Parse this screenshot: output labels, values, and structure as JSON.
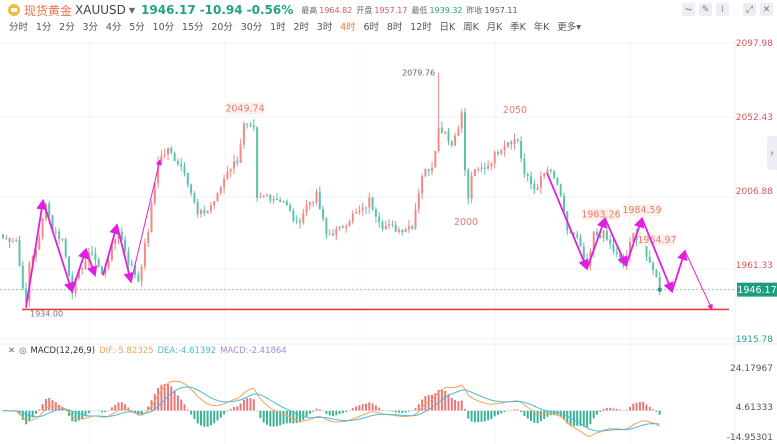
{
  "header": {
    "name": "现货黄金",
    "symbol": "XAUUSD",
    "price": "1946.17",
    "change": "-10.94",
    "change_pct": "-0.56%",
    "high_label": "最高",
    "high": "1964.82",
    "open_label": "开盘",
    "open": "1957.17",
    "low_label": "最低",
    "low": "1939.32",
    "prev_label": "昨收",
    "prev": "1957.11"
  },
  "periods": [
    "分时",
    "1分",
    "2分",
    "3分",
    "4分",
    "5分",
    "10分",
    "15分",
    "20分",
    "30分",
    "1时",
    "2时",
    "3时",
    "4时",
    "6时",
    "8时",
    "12时",
    "日K",
    "周K",
    "月K",
    "季K",
    "年K",
    "更多▾"
  ],
  "active_period": "4时",
  "toolbar": [
    "draw-icon",
    "pen-icon",
    "indicator-icon",
    "expand-icon",
    "close-icon"
  ],
  "colors": {
    "up": "#ef8a87",
    "down": "#5cc3aa",
    "accent": "#f0793c",
    "current": "#1e9e7e",
    "support": "#f03a3a",
    "arrow": "#e020e0"
  },
  "chart_data": {
    "type": "candlestick",
    "yaxis_ticks": [
      "2097.98",
      "2052.43",
      "2006.88",
      "1961.33",
      "1915.78"
    ],
    "ylim": [
      1915.78,
      2097.98
    ],
    "current_price": "1946.17",
    "support_line": {
      "value": 1934.0,
      "label": "1934.00"
    },
    "annotations": [
      {
        "text": "2079.76",
        "value": 2079.76
      },
      {
        "text": "2049.74",
        "value": 2049.74
      },
      {
        "text": "2050",
        "value": 2050
      },
      {
        "text": "2000",
        "value": 2000
      },
      {
        "text": "1983.26",
        "value": 1983.26
      },
      {
        "text": "1984.59",
        "value": 1984.59
      },
      {
        "text": "1964.97",
        "value": 1964.97
      }
    ],
    "close_path": [
      [
        0,
        1978
      ],
      [
        4,
        1977
      ],
      [
        5,
        1961
      ],
      [
        7,
        1937
      ],
      [
        8,
        1962
      ],
      [
        11,
        1977
      ],
      [
        13,
        2001
      ],
      [
        15,
        1983
      ],
      [
        18,
        1977
      ],
      [
        21,
        1946
      ],
      [
        24,
        1961
      ],
      [
        27,
        1970
      ],
      [
        30,
        1955
      ],
      [
        35,
        1983
      ],
      [
        38,
        1964
      ],
      [
        41,
        1952
      ],
      [
        44,
        1983
      ],
      [
        47,
        2026
      ],
      [
        50,
        2032
      ],
      [
        55,
        2020
      ],
      [
        59,
        1992
      ],
      [
        62,
        1995
      ],
      [
        65,
        2004
      ],
      [
        68,
        2020
      ],
      [
        71,
        2026
      ],
      [
        73,
        2047
      ],
      [
        76,
        2044
      ],
      [
        77,
        2001
      ],
      [
        80,
        2004
      ],
      [
        85,
        2001
      ],
      [
        89,
        1986
      ],
      [
        92,
        1998
      ],
      [
        95,
        2004
      ],
      [
        98,
        1980
      ],
      [
        102,
        1983
      ],
      [
        106,
        1992
      ],
      [
        109,
        1995
      ],
      [
        111,
        2001
      ],
      [
        115,
        1986
      ],
      [
        120,
        1983
      ],
      [
        124,
        1986
      ],
      [
        127,
        2017
      ],
      [
        130,
        2023
      ],
      [
        132,
        2045
      ],
      [
        134,
        2044
      ],
      [
        136,
        2035
      ],
      [
        139,
        2054
      ],
      [
        140,
        2020
      ],
      [
        141,
        2001
      ],
      [
        142,
        2017
      ],
      [
        147,
        2023
      ],
      [
        150,
        2032
      ],
      [
        153,
        2038
      ],
      [
        156,
        2038
      ],
      [
        158,
        2017
      ],
      [
        161,
        2008
      ],
      [
        165,
        2020
      ],
      [
        168,
        2011
      ],
      [
        171,
        1983
      ],
      [
        174,
        1977
      ],
      [
        177,
        1958
      ],
      [
        179,
        1980
      ],
      [
        182,
        1980
      ],
      [
        185,
        1970
      ],
      [
        188,
        1961
      ],
      [
        191,
        1980
      ],
      [
        194,
        1977
      ],
      [
        195,
        1964
      ],
      [
        197,
        1960
      ],
      [
        199,
        1946.17
      ]
    ],
    "peak_high": [
      132,
      2079.76
    ],
    "macd": {
      "params": "MACD(12,26,9)",
      "dif": "DIF:-5.82325",
      "dea": "DEA:-4.61392",
      "macd": "MACD:-2.41864",
      "yaxis_ticks": [
        "24.17967",
        "4.61333",
        "-14.95301"
      ],
      "ylim": [
        -14.95301,
        24.17967
      ],
      "colors": {
        "dif": "#f5a15a",
        "dea": "#4cb8d8",
        "macd": "#a78ad8"
      }
    }
  }
}
